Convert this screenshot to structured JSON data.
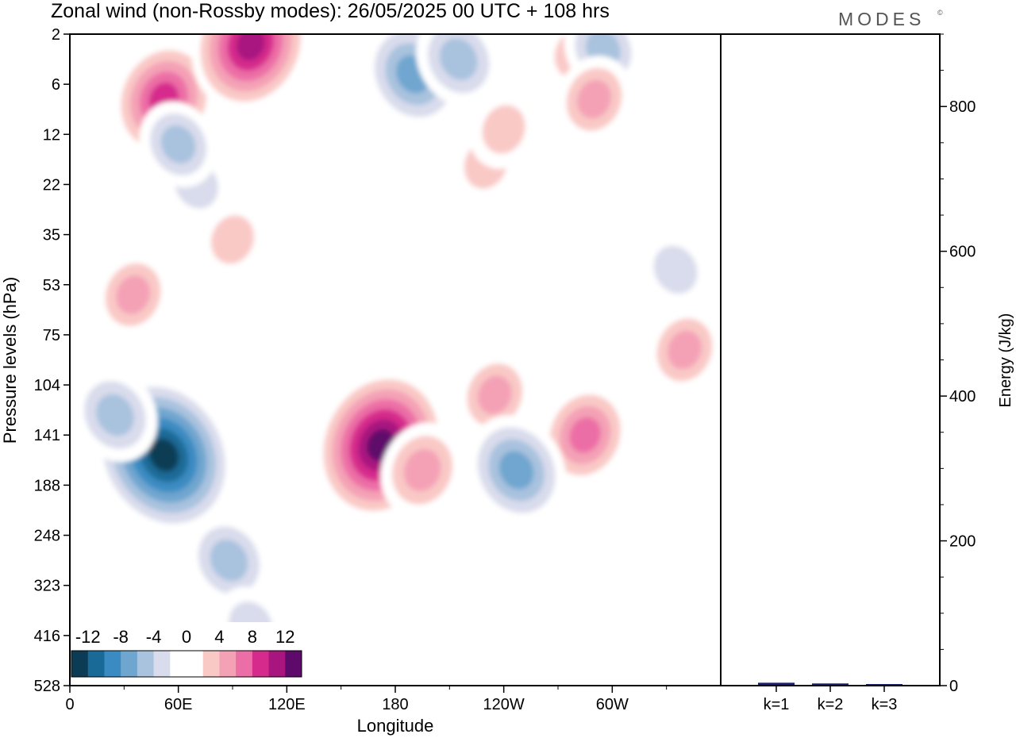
{
  "header": {
    "title": "Zonal wind (non-Rossby modes):  26/05/2025  00 UTC  + 108 hrs",
    "brand": "MODES",
    "brand_mark": "©"
  },
  "colors": {
    "scale": [
      "#0c3c55",
      "#1a6a97",
      "#3a8bc2",
      "#6fa6cf",
      "#a9c2de",
      "#d9dcec",
      "#ffffff",
      "#ffffff",
      "#f9c9c6",
      "#f4a1b6",
      "#ec6ea6",
      "#d62b8c",
      "#a9157f",
      "#5e0a6a"
    ],
    "bar": "#1d1f6b",
    "frame": "#000000"
  },
  "chart_data": [
    {
      "type": "heatmap",
      "title": "Zonal wind (non-Rossby modes):  26/05/2025  00 UTC  + 108 hrs",
      "xlabel": "Longitude",
      "ylabel": "Pressure levels (hPa)",
      "x_ticks": [
        "0",
        "60E",
        "120E",
        "180",
        "120W",
        "60W"
      ],
      "x_tick_values": [
        0,
        60,
        120,
        180,
        240,
        300
      ],
      "xlim": [
        0,
        360
      ],
      "y_ticks": [
        "2",
        "6",
        "12",
        "22",
        "35",
        "53",
        "75",
        "104",
        "141",
        "188",
        "248",
        "323",
        "416",
        "528"
      ],
      "y_axis": "pressure levels, inverted, top = 2 hPa",
      "colorbar": {
        "labels": [
          "-12",
          "-8",
          "-4",
          "0",
          "4",
          "8",
          "12"
        ],
        "label_values": [
          -12,
          -8,
          -4,
          0,
          4,
          8,
          12
        ],
        "range": [
          -14,
          14
        ],
        "step": 2,
        "placement": "bottom-left inset"
      },
      "features": [
        {
          "lon": 52,
          "level_index": 8.4,
          "value": -14
        },
        {
          "lon": 25,
          "level_index": 7.6,
          "value": -6
        },
        {
          "lon": 88,
          "level_index": 10.5,
          "value": -6
        },
        {
          "lon": 100,
          "level_index": 11.8,
          "value": -4
        },
        {
          "lon": 172,
          "level_index": 8.2,
          "value": 13
        },
        {
          "lon": 195,
          "level_index": 8.7,
          "value": 6
        },
        {
          "lon": 235,
          "level_index": 7.2,
          "value": 5
        },
        {
          "lon": 285,
          "level_index": 8.0,
          "value": 7
        },
        {
          "lon": 247,
          "level_index": 8.7,
          "value": -8
        },
        {
          "lon": 52,
          "level_index": 1.3,
          "value": 9
        },
        {
          "lon": 100,
          "level_index": 0.2,
          "value": 11
        },
        {
          "lon": 190,
          "level_index": 0.8,
          "value": -8
        },
        {
          "lon": 215,
          "level_index": 0.5,
          "value": -6
        },
        {
          "lon": 280,
          "level_index": 0.4,
          "value": 4
        },
        {
          "lon": 295,
          "level_index": 0.3,
          "value": -5
        },
        {
          "lon": 70,
          "level_index": 3.0,
          "value": -4
        },
        {
          "lon": 60,
          "level_index": 2.2,
          "value": -5
        },
        {
          "lon": 90,
          "level_index": 4.1,
          "value": 4
        },
        {
          "lon": 35,
          "level_index": 5.2,
          "value": 5
        },
        {
          "lon": 230,
          "level_index": 2.6,
          "value": 4
        },
        {
          "lon": 340,
          "level_index": 6.3,
          "value": 5
        },
        {
          "lon": 335,
          "level_index": 4.7,
          "value": -4
        },
        {
          "lon": 290,
          "level_index": 1.3,
          "value": 5
        },
        {
          "lon": 240,
          "level_index": 1.9,
          "value": 4
        }
      ]
    },
    {
      "type": "bar",
      "categories": [
        "k=1",
        "k=2",
        "k=3"
      ],
      "values": [
        4,
        3,
        2
      ],
      "ylabel": "Energy (J/kg)",
      "ylim": [
        0,
        900
      ],
      "y_ticks": [
        0,
        200,
        400,
        600,
        800
      ]
    }
  ]
}
